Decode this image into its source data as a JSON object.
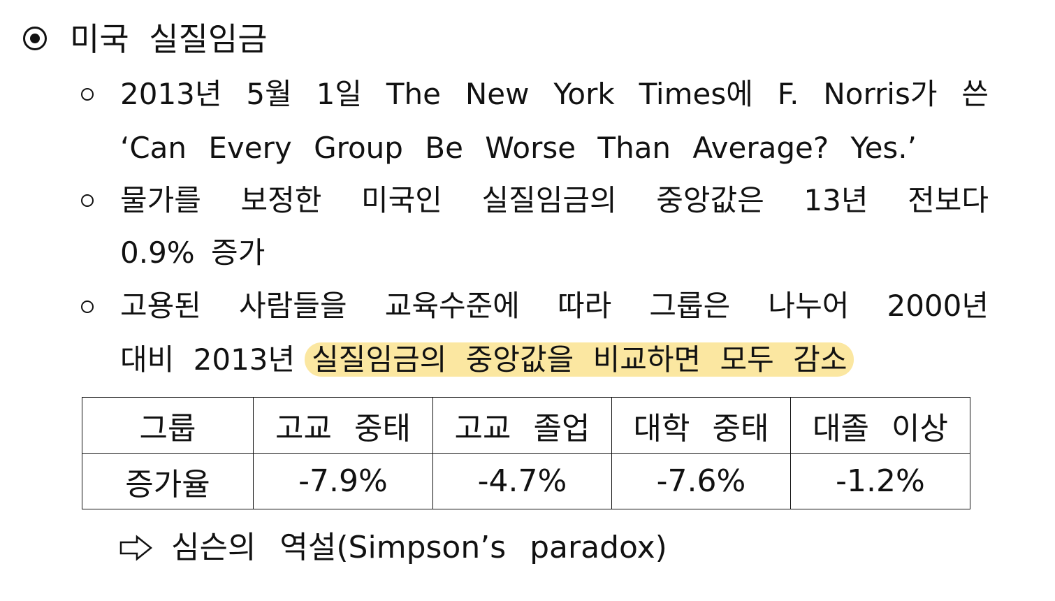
{
  "heading": "미국 실질임금",
  "bullets": [
    {
      "lines": [
        "2013년 5월 1일 The New York Times에 F. Norris가 쓴",
        "‘Can Every Group Be Worse Than Average? Yes.’"
      ]
    },
    {
      "lines": [
        "물가를 보정한 미국인 실질임금의 중앙값은 13년 전보다",
        "0.9% 증가"
      ]
    },
    {
      "lines": [
        "고용된 사람들을 교육수준에 따라 그룹은 나누어 2000년",
        "대비 2013년"
      ],
      "highlight": "실질임금의 중앙값을 비교하면 모두 감소"
    }
  ],
  "table": {
    "header": [
      "그룹",
      "고교 중태",
      "고교 졸업",
      "대학 중태",
      "대졸 이상"
    ],
    "rows": [
      [
        "증가율",
        "-7.9%",
        "-4.7%",
        "-7.6%",
        "-1.2%"
      ]
    ]
  },
  "conclusion": "심슨의 역설(Simpson’s paradox)"
}
